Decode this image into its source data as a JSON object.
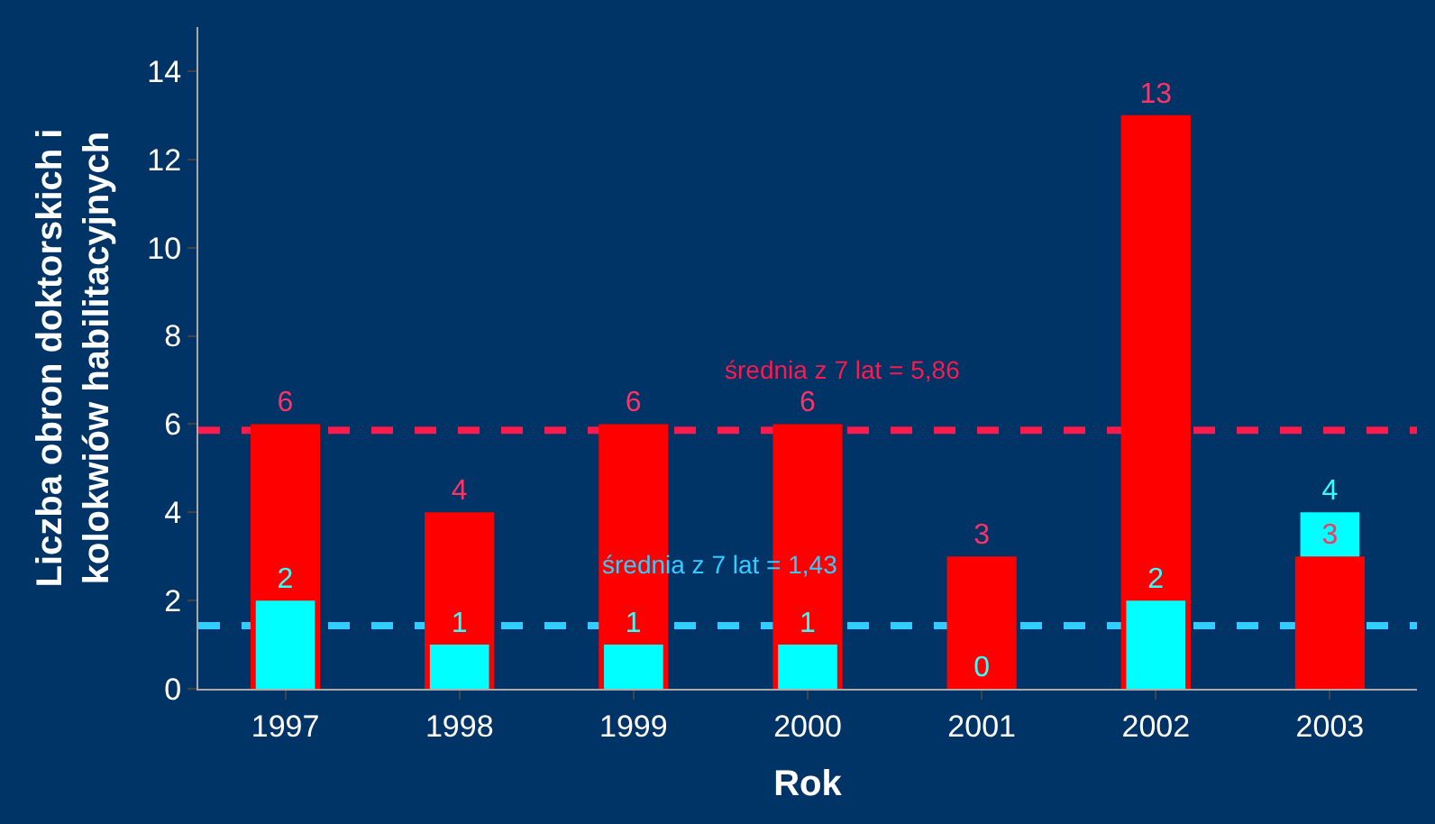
{
  "chart_data": {
    "type": "bar",
    "xlabel": "Rok",
    "ylabel": "Liczba obron doktorskich i kolokwiów habilitacyjnych",
    "categories": [
      "1997",
      "1998",
      "1999",
      "2000",
      "2001",
      "2002",
      "2003"
    ],
    "series": [
      {
        "color": "#ff0000",
        "values": [
          6,
          4,
          6,
          6,
          3,
          13,
          3
        ]
      },
      {
        "color": "#00ffff",
        "values": [
          2,
          1,
          1,
          1,
          0,
          2,
          4
        ]
      }
    ],
    "ylim": [
      0,
      15
    ],
    "yticks": [
      0,
      2,
      4,
      6,
      8,
      10,
      12,
      14
    ],
    "grid": false,
    "legend": false,
    "data_labels": true,
    "ref_lines": [
      {
        "axis": "y",
        "value": 5.86,
        "label": "średnia z 7 lat = 5,86",
        "color": "#ff1a4d",
        "line_style": "dashed"
      },
      {
        "axis": "y",
        "value": 1.43,
        "label": "średnia z 7 lat = 1,43",
        "color": "#33ccff",
        "line_style": "dashed"
      }
    ]
  }
}
